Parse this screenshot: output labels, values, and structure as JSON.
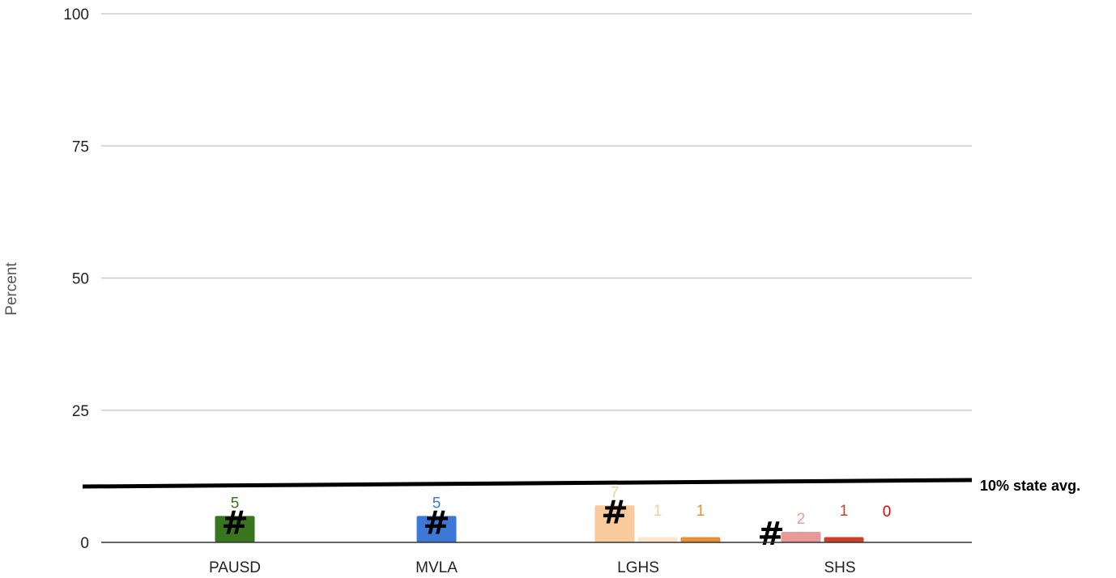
{
  "chart_data": {
    "type": "bar",
    "categories": [
      "PAUSD",
      "MVLA",
      "LGHS",
      "SHS"
    ],
    "ylabel": "Percent",
    "xlabel": "",
    "ylim": [
      0,
      100
    ],
    "yticks": [
      0,
      25,
      50,
      75,
      100
    ],
    "grid": true,
    "bars": [
      {
        "category": "PAUSD",
        "value": 5,
        "label": "5",
        "color": "#38761d",
        "label_color": "#38761d",
        "marker": "#"
      },
      {
        "category": "MVLA",
        "value": 5,
        "label": "5",
        "color": "#3c78d8",
        "label_color": "#3c78d8",
        "marker": "#"
      },
      {
        "category": "LGHS",
        "value": 7,
        "label": "7",
        "color": "#f9cb9c",
        "label_color": "#f9cb9c",
        "marker": "#"
      },
      {
        "category": "LGHS",
        "value": 1,
        "label": "1",
        "color": "#fce5cd",
        "label_color": "#f9cb9c",
        "marker": ""
      },
      {
        "category": "LGHS",
        "value": 1,
        "label": "1",
        "color": "#e69138",
        "label_color": "#e69138",
        "marker": ""
      },
      {
        "category": "SHS",
        "value": 2,
        "label": "2",
        "color": "#ea9999",
        "label_color": "#ea9999",
        "marker": "#"
      },
      {
        "category": "SHS",
        "value": 1,
        "label": "1",
        "color": "#cc4125",
        "label_color": "#cc4125",
        "marker": ""
      },
      {
        "category": "SHS",
        "value": 0,
        "label": "0",
        "color": "#e50000",
        "label_color": "#e50000",
        "marker": ""
      }
    ],
    "reference_line": {
      "label": "10% state avg.",
      "value": 10,
      "color": "#000000"
    }
  }
}
